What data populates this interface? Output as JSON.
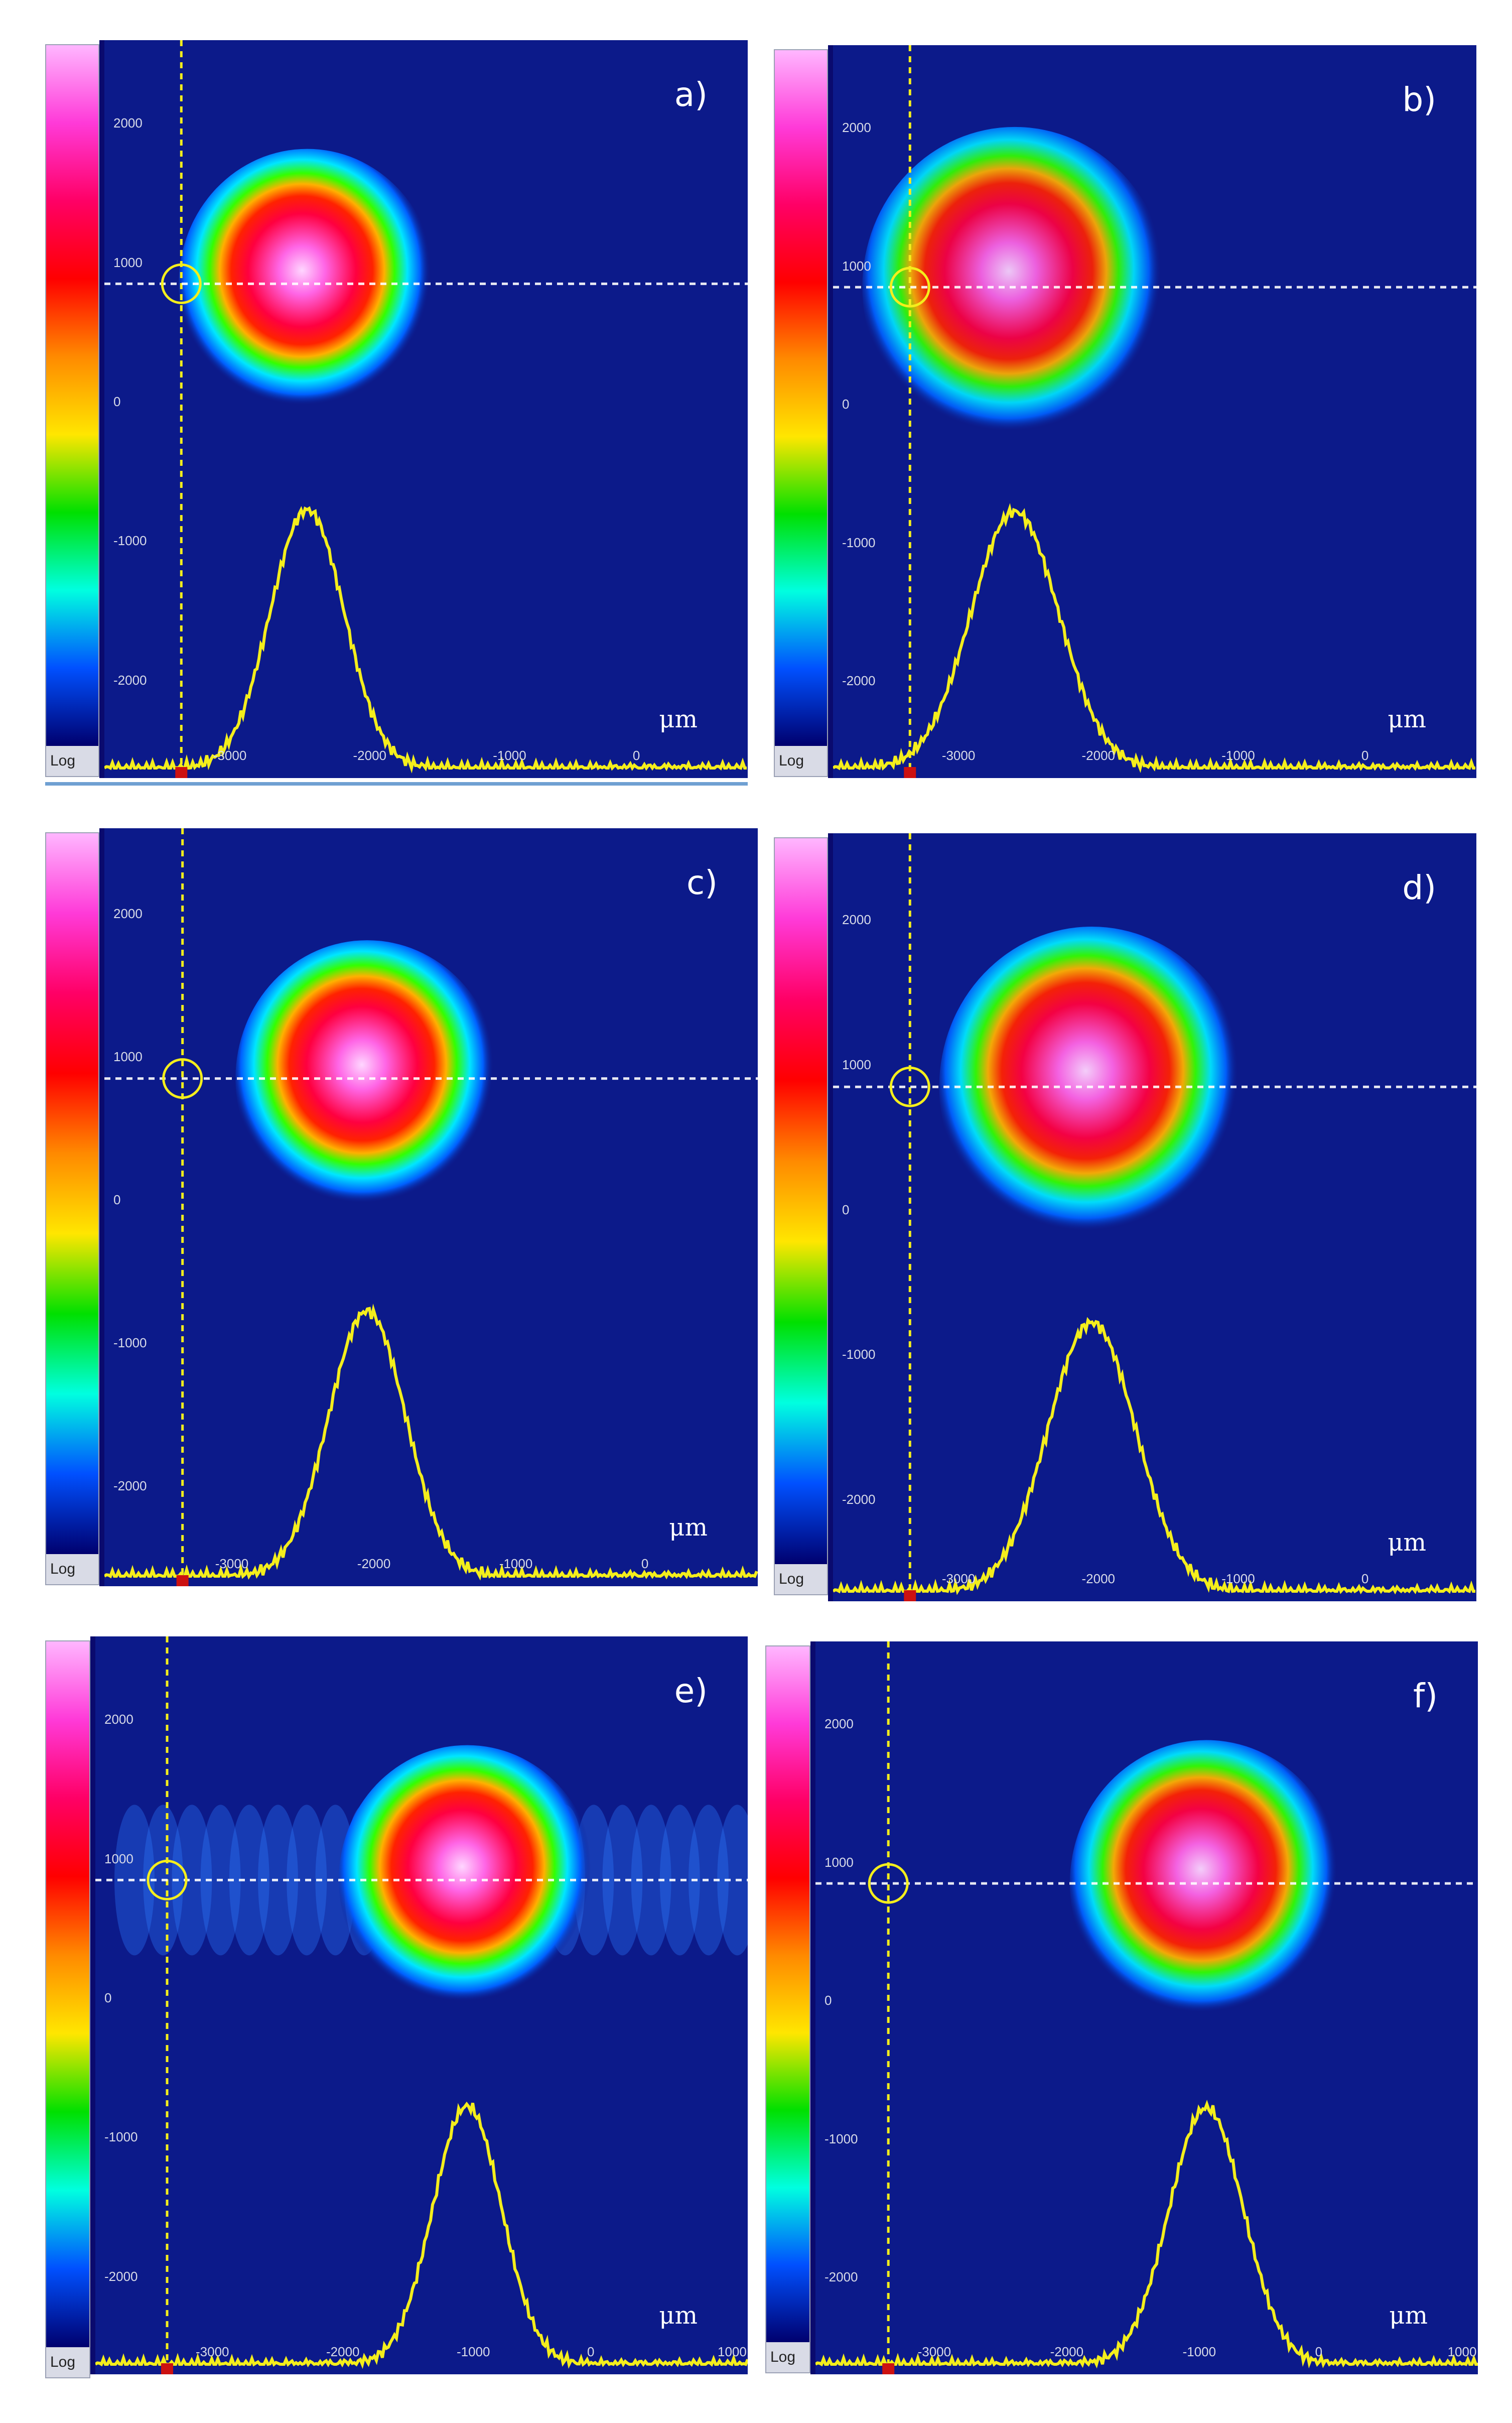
{
  "colors": {
    "background_field": "#0c1a8a",
    "profile_line": "#f4ee1c",
    "crosshair": "#f4ee1c",
    "colorbar_stops": [
      "#ffb6ff",
      "#ff3ad8",
      "#ff0066",
      "#ff0000",
      "#ff8a00",
      "#ffe600",
      "#00e000",
      "#00ffe0",
      "#0050ff",
      "#00006e"
    ]
  },
  "colorbar": {
    "scale_label": "Log"
  },
  "unit_label": "μm",
  "panels": [
    {
      "label": "a)",
      "yticks": [
        "2000",
        "1000",
        "0",
        "-1000",
        "-2000"
      ],
      "xticks": [
        "-3000",
        "-2000",
        "-1000",
        "0"
      ],
      "beam_center_x_um": -2450,
      "beam_radius": 0.8,
      "beam_intensity": 1.0,
      "fringes": false
    },
    {
      "label": "b)",
      "yticks": [
        "2000",
        "1000",
        "0",
        "-1000",
        "-2000"
      ],
      "xticks": [
        "-3000",
        "-2000",
        "-1000",
        "0"
      ],
      "beam_center_x_um": -2600,
      "beam_radius": 0.95,
      "beam_intensity": 0.92,
      "fringes": false
    },
    {
      "label": "c)",
      "yticks": [
        "2000",
        "1000",
        "0",
        "-1000",
        "-2000"
      ],
      "xticks": [
        "-3000",
        "-2000",
        "-1000",
        "0"
      ],
      "beam_center_x_um": -2050,
      "beam_radius": 0.82,
      "beam_intensity": 1.0,
      "fringes": false
    },
    {
      "label": "d)",
      "yticks": [
        "2000",
        "1000",
        "0",
        "-1000",
        "-2000"
      ],
      "xticks": [
        "-3000",
        "-2000",
        "-1000",
        "0"
      ],
      "beam_center_x_um": -2050,
      "beam_radius": 0.95,
      "beam_intensity": 0.95,
      "fringes": false
    },
    {
      "label": "e)",
      "yticks": [
        "2000",
        "1000",
        "0",
        "-1000",
        "-2000"
      ],
      "xticks": [
        "-3000",
        "-2000",
        "-1000",
        "0",
        "1000"
      ],
      "beam_center_x_um": -1050,
      "beam_radius": 0.8,
      "beam_intensity": 1.0,
      "fringes": true
    },
    {
      "label": "f)",
      "yticks": [
        "2000",
        "1000",
        "0",
        "-1000",
        "-2000"
      ],
      "xticks": [
        "-3000",
        "-2000",
        "-1000",
        "0",
        "1000"
      ],
      "beam_center_x_um": -950,
      "beam_radius": 0.85,
      "beam_intensity": 0.95,
      "fringes": false
    }
  ]
}
